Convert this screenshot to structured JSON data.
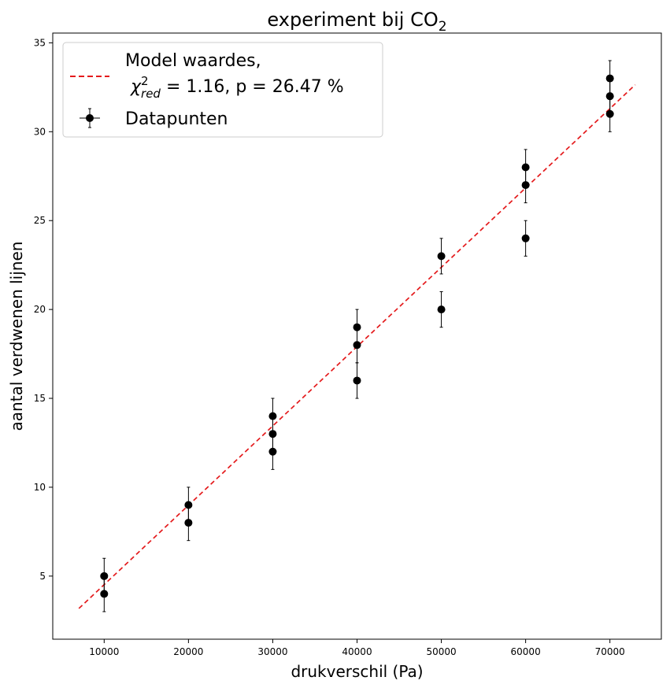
{
  "chart_data": {
    "type": "scatter",
    "title": "experiment bij CO",
    "title_subscript": "2",
    "xlabel": "drukverschil (Pa)",
    "ylabel": "aantal verdwenen lijnen",
    "xlim": [
      3900,
      76100
    ],
    "ylim": [
      1.45,
      35.55
    ],
    "xticks": [
      10000,
      20000,
      30000,
      40000,
      50000,
      60000,
      70000
    ],
    "yticks": [
      5,
      10,
      15,
      20,
      25,
      30,
      35
    ],
    "grid": false,
    "legend_position": "top-left",
    "legend": {
      "model_line1": "Model waardes,",
      "model_chi_symbol": "χ",
      "model_chi_sup": "2",
      "model_chi_sub": "red",
      "model_line2_rest": " = 1.16, p = 26.47 %",
      "data_label": "Datapunten"
    },
    "series": [
      {
        "kind": "errorbar",
        "color": "#000000",
        "y_error": 1,
        "points": [
          {
            "x": 10000,
            "y": 5
          },
          {
            "x": 10000,
            "y": 4
          },
          {
            "x": 20000,
            "y": 9
          },
          {
            "x": 20000,
            "y": 8
          },
          {
            "x": 30000,
            "y": 14
          },
          {
            "x": 30000,
            "y": 13
          },
          {
            "x": 30000,
            "y": 12
          },
          {
            "x": 40000,
            "y": 19
          },
          {
            "x": 40000,
            "y": 18
          },
          {
            "x": 40000,
            "y": 16
          },
          {
            "x": 50000,
            "y": 23
          },
          {
            "x": 50000,
            "y": 20
          },
          {
            "x": 60000,
            "y": 28
          },
          {
            "x": 60000,
            "y": 27
          },
          {
            "x": 60000,
            "y": 24
          },
          {
            "x": 70000,
            "y": 33
          },
          {
            "x": 70000,
            "y": 32
          },
          {
            "x": 70000,
            "y": 31
          }
        ]
      },
      {
        "kind": "line",
        "style": "dashed",
        "color": "#e41a1c",
        "x": [
          7000,
          73000
        ],
        "y": [
          3.18,
          32.64
        ]
      }
    ]
  }
}
